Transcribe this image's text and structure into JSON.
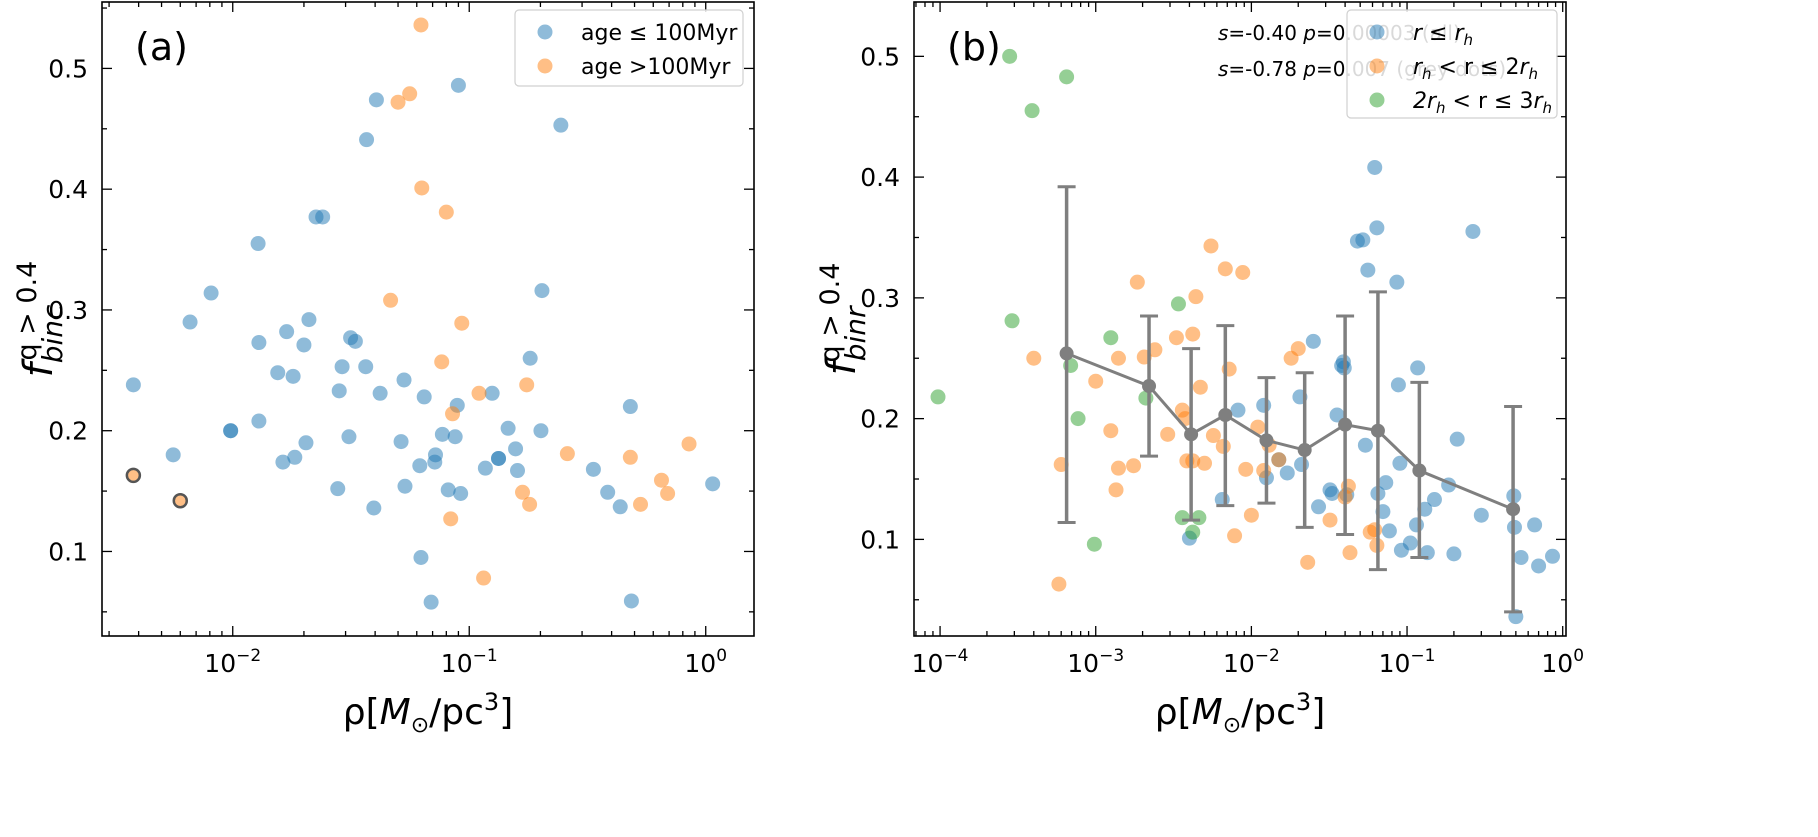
{
  "chart_data": [
    {
      "type": "scatter",
      "panel_label": "(a)",
      "xlabel": "ρ[M⊙/pc³]",
      "ylabel": "f_binc^{q>0.4}",
      "xscale": "log",
      "xlim": [
        0.0028,
        1.6
      ],
      "ylim": [
        0.03,
        0.555
      ],
      "xticks": [
        {
          "value": 0.01,
          "base": "10",
          "exp": "−2"
        },
        {
          "value": 0.1,
          "base": "10",
          "exp": "−1"
        },
        {
          "value": 1,
          "base": "10",
          "exp": "0"
        }
      ],
      "yticks": [
        0.1,
        0.2,
        0.3,
        0.4,
        0.5
      ],
      "yticks_text": [
        "0.1",
        "0.2",
        "0.3",
        "0.4",
        "0.5"
      ],
      "legend_position": "top-right",
      "series": [
        {
          "name": "age ≤ 100Myr",
          "color": "#1f77b4",
          "points": [
            [
              0.0038,
              0.238
            ],
            [
              0.0056,
              0.18
            ],
            [
              0.0066,
              0.29
            ],
            [
              0.0081,
              0.314
            ],
            [
              0.0098,
              0.2
            ],
            [
              0.0128,
              0.355
            ],
            [
              0.0129,
              0.273
            ],
            [
              0.0129,
              0.208
            ],
            [
              0.0155,
              0.248
            ],
            [
              0.0163,
              0.174
            ],
            [
              0.0169,
              0.282
            ],
            [
              0.018,
              0.245
            ],
            [
              0.0183,
              0.178
            ],
            [
              0.02,
              0.271
            ],
            [
              0.0204,
              0.19
            ],
            [
              0.021,
              0.292
            ],
            [
              0.0225,
              0.377
            ],
            [
              0.024,
              0.377
            ],
            [
              0.0278,
              0.152
            ],
            [
              0.0282,
              0.233
            ],
            [
              0.029,
              0.253
            ],
            [
              0.031,
              0.195
            ],
            [
              0.0315,
              0.277
            ],
            [
              0.033,
              0.274
            ],
            [
              0.0365,
              0.253
            ],
            [
              0.0368,
              0.441
            ],
            [
              0.0395,
              0.136
            ],
            [
              0.0405,
              0.474
            ],
            [
              0.042,
              0.231
            ],
            [
              0.0515,
              0.191
            ],
            [
              0.053,
              0.242
            ],
            [
              0.0535,
              0.154
            ],
            [
              0.0618,
              0.171
            ],
            [
              0.0625,
              0.095
            ],
            [
              0.0645,
              0.228
            ],
            [
              0.069,
              0.058
            ],
            [
              0.0715,
              0.174
            ],
            [
              0.072,
              0.18
            ],
            [
              0.077,
              0.197
            ],
            [
              0.0815,
              0.151
            ],
            [
              0.0872,
              0.195
            ],
            [
              0.089,
              0.221
            ],
            [
              0.09,
              0.486
            ],
            [
              0.092,
              0.148
            ],
            [
              0.117,
              0.169
            ],
            [
              0.125,
              0.231
            ],
            [
              0.133,
              0.177
            ],
            [
              0.146,
              0.202
            ],
            [
              0.157,
              0.185
            ],
            [
              0.16,
              0.167
            ],
            [
              0.181,
              0.26
            ],
            [
              0.203,
              0.316
            ],
            [
              0.201,
              0.2
            ],
            [
              0.244,
              0.453
            ],
            [
              0.335,
              0.168
            ],
            [
              0.385,
              0.149
            ],
            [
              0.435,
              0.137
            ],
            [
              0.48,
              0.22
            ],
            [
              0.485,
              0.059
            ],
            [
              1.07,
              0.156
            ],
            [
              0.0098,
              0.2
            ],
            [
              0.133,
              0.177
            ]
          ],
          "highlighted": [
            [
              0.0038,
              0.163
            ],
            [
              0.006,
              0.142
            ]
          ]
        },
        {
          "name": "age >100Myr",
          "color": "#ff7f0e",
          "points": [
            [
              0.0465,
              0.308
            ],
            [
              0.05,
              0.472
            ],
            [
              0.056,
              0.479
            ],
            [
              0.0625,
              0.536
            ],
            [
              0.063,
              0.401
            ],
            [
              0.0765,
              0.257
            ],
            [
              0.08,
              0.381
            ],
            [
              0.0835,
              0.127
            ],
            [
              0.085,
              0.214
            ],
            [
              0.093,
              0.289
            ],
            [
              0.11,
              0.231
            ],
            [
              0.115,
              0.078
            ],
            [
              0.168,
              0.149
            ],
            [
              0.175,
              0.238
            ],
            [
              0.18,
              0.139
            ],
            [
              0.26,
              0.181
            ],
            [
              0.48,
              0.178
            ],
            [
              0.53,
              0.139
            ],
            [
              0.65,
              0.159
            ],
            [
              0.69,
              0.148
            ],
            [
              0.85,
              0.189
            ]
          ]
        }
      ]
    },
    {
      "type": "scatter",
      "panel_label": "(b)",
      "xlabel": "ρ[M⊙/pc³]",
      "ylabel": "f_binr^{q>0.4}",
      "xscale": "log",
      "xlim": [
        6.8e-05,
        1.05
      ],
      "ylim": [
        0.02,
        0.545
      ],
      "xticks": [
        {
          "value": 0.0001,
          "base": "10",
          "exp": "−4"
        },
        {
          "value": 0.001,
          "base": "10",
          "exp": "−3"
        },
        {
          "value": 0.01,
          "base": "10",
          "exp": "−2"
        },
        {
          "value": 0.1,
          "base": "10",
          "exp": "−1"
        },
        {
          "value": 1,
          "base": "10",
          "exp": "0"
        }
      ],
      "yticks": [
        0.1,
        0.2,
        0.3,
        0.4,
        0.5
      ],
      "yticks_text": [
        "0.1",
        "0.2",
        "0.3",
        "0.4",
        "0.5"
      ],
      "legend_position": "top-right",
      "annotations": [
        {
          "s": "-0.40",
          "p": "0.00003",
          "suffix": " (all)"
        },
        {
          "s": "-0.78",
          "p": "0.007",
          "suffix": " (grey dots)"
        }
      ],
      "series": [
        {
          "name": "r ≤ r_h",
          "legend_parts": {
            "left": "r",
            "op": " ≤ ",
            "right": "r",
            "right_sub": "h"
          },
          "color": "#1f77b4",
          "points": [
            [
              0.004,
              0.101
            ],
            [
              0.0065,
              0.133
            ],
            [
              0.0082,
              0.207
            ],
            [
              0.012,
              0.211
            ],
            [
              0.0125,
              0.151
            ],
            [
              0.015,
              0.166
            ],
            [
              0.017,
              0.155
            ],
            [
              0.0205,
              0.218
            ],
            [
              0.021,
              0.162
            ],
            [
              0.025,
              0.264
            ],
            [
              0.027,
              0.127
            ],
            [
              0.032,
              0.141
            ],
            [
              0.033,
              0.138
            ],
            [
              0.0355,
              0.203
            ],
            [
              0.039,
              0.247
            ],
            [
              0.0395,
              0.242
            ],
            [
              0.041,
              0.137
            ],
            [
              0.048,
              0.347
            ],
            [
              0.052,
              0.348
            ],
            [
              0.054,
              0.178
            ],
            [
              0.056,
              0.323
            ],
            [
              0.062,
              0.408
            ],
            [
              0.064,
              0.358
            ],
            [
              0.065,
              0.138
            ],
            [
              0.07,
              0.123
            ],
            [
              0.073,
              0.147
            ],
            [
              0.077,
              0.107
            ],
            [
              0.086,
              0.313
            ],
            [
              0.088,
              0.228
            ],
            [
              0.09,
              0.163
            ],
            [
              0.092,
              0.091
            ],
            [
              0.105,
              0.097
            ],
            [
              0.115,
              0.112
            ],
            [
              0.117,
              0.242
            ],
            [
              0.13,
              0.125
            ],
            [
              0.135,
              0.089
            ],
            [
              0.15,
              0.133
            ],
            [
              0.185,
              0.145
            ],
            [
              0.2,
              0.088
            ],
            [
              0.21,
              0.183
            ],
            [
              0.265,
              0.355
            ],
            [
              0.3,
              0.12
            ],
            [
              0.485,
              0.136
            ],
            [
              0.49,
              0.11
            ],
            [
              0.5,
              0.036
            ],
            [
              0.54,
              0.085
            ],
            [
              0.66,
              0.112
            ],
            [
              0.7,
              0.078
            ],
            [
              0.86,
              0.086
            ],
            [
              0.038,
              0.244
            ]
          ]
        },
        {
          "name": "r_h < r ≤ 2r_h",
          "legend_parts": {
            "left": "r",
            "left_sub": "h",
            "op": " < r ≤ 2",
            "right": "r",
            "right_sub": "h"
          },
          "color": "#ff7f0e",
          "points": [
            [
              0.0004,
              0.25
            ],
            [
              0.00058,
              0.063
            ],
            [
              0.0006,
              0.162
            ],
            [
              0.001,
              0.231
            ],
            [
              0.00135,
              0.141
            ],
            [
              0.0014,
              0.159
            ],
            [
              0.0014,
              0.25
            ],
            [
              0.00175,
              0.161
            ],
            [
              0.00185,
              0.313
            ],
            [
              0.00205,
              0.251
            ],
            [
              0.0024,
              0.257
            ],
            [
              0.0029,
              0.187
            ],
            [
              0.0033,
              0.267
            ],
            [
              0.0036,
              0.207
            ],
            [
              0.00375,
              0.2
            ],
            [
              0.00385,
              0.165
            ],
            [
              0.0042,
              0.27
            ],
            [
              0.0044,
              0.301
            ],
            [
              0.0047,
              0.226
            ],
            [
              0.005,
              0.163
            ],
            [
              0.0055,
              0.343
            ],
            [
              0.0057,
              0.186
            ],
            [
              0.0066,
              0.177
            ],
            [
              0.0068,
              0.324
            ],
            [
              0.0072,
              0.241
            ],
            [
              0.0078,
              0.103
            ],
            [
              0.0088,
              0.321
            ],
            [
              0.0092,
              0.158
            ],
            [
              0.01,
              0.12
            ],
            [
              0.011,
              0.193
            ],
            [
              0.012,
              0.157
            ],
            [
              0.013,
              0.178
            ],
            [
              0.015,
              0.166
            ],
            [
              0.018,
              0.25
            ],
            [
              0.02,
              0.258
            ],
            [
              0.023,
              0.081
            ],
            [
              0.032,
              0.116
            ],
            [
              0.04,
              0.135
            ],
            [
              0.042,
              0.144
            ],
            [
              0.043,
              0.089
            ],
            [
              0.058,
              0.106
            ],
            [
              0.062,
              0.108
            ],
            [
              0.064,
              0.095
            ],
            [
              0.0042,
              0.165
            ],
            [
              0.00125,
              0.19
            ]
          ]
        },
        {
          "name": "2r_h < r ≤ 3r_h",
          "legend_parts": {
            "left": "2r",
            "left_sub": "h",
            "op": " < r ≤ 3",
            "right": "r",
            "right_sub": "h"
          },
          "color": "#2ca02c",
          "points": [
            [
              9.7e-05,
              0.218
            ],
            [
              0.00028,
              0.5
            ],
            [
              0.00029,
              0.281
            ],
            [
              0.00039,
              0.455
            ],
            [
              0.00065,
              0.483
            ],
            [
              0.00069,
              0.244
            ],
            [
              0.00077,
              0.2
            ],
            [
              0.00098,
              0.096
            ],
            [
              0.00125,
              0.267
            ],
            [
              0.0021,
              0.217
            ],
            [
              0.0034,
              0.295
            ],
            [
              0.0036,
              0.118
            ],
            [
              0.0042,
              0.106
            ],
            [
              0.0046,
              0.118
            ]
          ]
        }
      ],
      "binned": {
        "color": "#7f7f7f",
        "points": [
          {
            "x": 0.00065,
            "y": 0.254,
            "lo": 0.114,
            "hi": 0.392
          },
          {
            "x": 0.0022,
            "y": 0.227,
            "lo": 0.169,
            "hi": 0.285
          },
          {
            "x": 0.0041,
            "y": 0.187,
            "lo": 0.116,
            "hi": 0.258
          },
          {
            "x": 0.0068,
            "y": 0.203,
            "lo": 0.128,
            "hi": 0.277
          },
          {
            "x": 0.0125,
            "y": 0.182,
            "lo": 0.13,
            "hi": 0.234
          },
          {
            "x": 0.022,
            "y": 0.174,
            "lo": 0.11,
            "hi": 0.238
          },
          {
            "x": 0.04,
            "y": 0.195,
            "lo": 0.104,
            "hi": 0.285
          },
          {
            "x": 0.065,
            "y": 0.19,
            "lo": 0.075,
            "hi": 0.305
          },
          {
            "x": 0.12,
            "y": 0.157,
            "lo": 0.085,
            "hi": 0.23
          },
          {
            "x": 0.48,
            "y": 0.125,
            "lo": 0.04,
            "hi": 0.21
          }
        ]
      }
    }
  ]
}
